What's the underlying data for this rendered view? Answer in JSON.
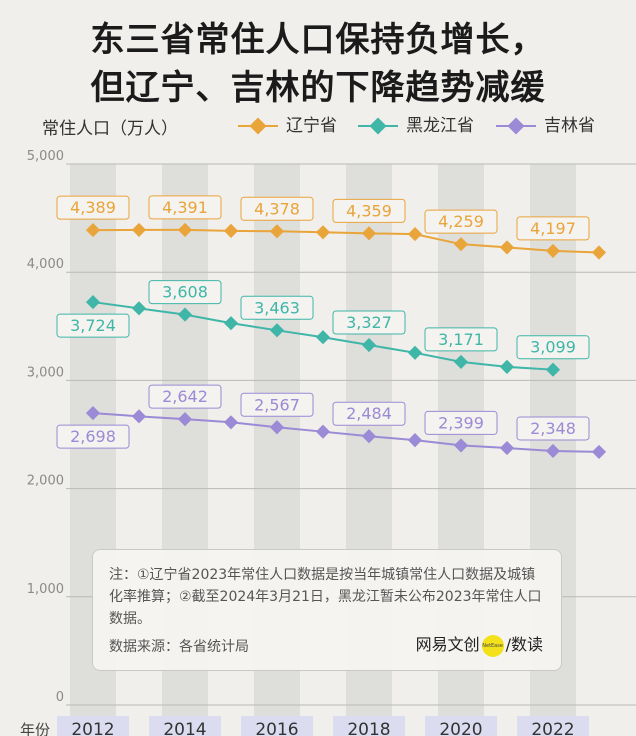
{
  "title_line1": "东三省常住人口保持负增长，",
  "title_line2": "但辽宁、吉林的下降趋势减缓",
  "colors": {
    "liaoning": "#e9a43a",
    "heilongjiang": "#3fb6a8",
    "jilin": "#9b8ad6",
    "band": "#dededb"
  },
  "note": {
    "text": "注：①辽宁省2023年常住人口数据是按当年城镇常住人口数据及城镇化率推算；②截至2024年3月21日，黑龙江暂未公布2023年常住人口数据。",
    "source": "数据来源：各省统计局",
    "brand_left": "网易文创",
    "brand_dot": "NetEase",
    "brand_right": "/数读"
  },
  "chart_data": {
    "type": "line",
    "ylabel": "常住人口（万人）",
    "xlabel": "年份",
    "x": [
      2012,
      2013,
      2014,
      2015,
      2016,
      2017,
      2018,
      2019,
      2020,
      2021,
      2022,
      2023
    ],
    "x_tick_labels": [
      "2012",
      "2014",
      "2016",
      "2018",
      "2020",
      "2022"
    ],
    "ylim": [
      0,
      5000
    ],
    "y_ticks": [
      0,
      1000,
      2000,
      3000,
      4000,
      5000
    ],
    "y_tick_labels": [
      "0",
      "1,000",
      "2,000",
      "3,000",
      "4,000",
      "5,000"
    ],
    "legend_position": "top",
    "series": [
      {
        "name": "辽宁省",
        "color_key": "liaoning",
        "values": [
          4389,
          4391,
          4391,
          4382,
          4378,
          4369,
          4359,
          4352,
          4259,
          4229,
          4197,
          4182
        ],
        "labels": [
          {
            "x": 2012,
            "text": "4,389"
          },
          {
            "x": 2014,
            "text": "4,391"
          },
          {
            "x": 2016,
            "text": "4,378"
          },
          {
            "x": 2018,
            "text": "4,359"
          },
          {
            "x": 2020,
            "text": "4,259"
          },
          {
            "x": 2022,
            "text": "4,197"
          }
        ]
      },
      {
        "name": "黑龙江省",
        "color_key": "heilongjiang",
        "values": [
          3724,
          3666,
          3608,
          3529,
          3463,
          3399,
          3327,
          3255,
          3171,
          3125,
          3099,
          null
        ],
        "labels": [
          {
            "x": 2012,
            "text": "3,724"
          },
          {
            "x": 2014,
            "text": "3,608"
          },
          {
            "x": 2016,
            "text": "3,463"
          },
          {
            "x": 2018,
            "text": "3,327"
          },
          {
            "x": 2020,
            "text": "3,171"
          },
          {
            "x": 2022,
            "text": "3,099"
          }
        ]
      },
      {
        "name": "吉林省",
        "color_key": "jilin",
        "values": [
          2698,
          2668,
          2642,
          2613,
          2567,
          2526,
          2484,
          2448,
          2399,
          2375,
          2348,
          2339
        ],
        "labels": [
          {
            "x": 2012,
            "text": "2,698"
          },
          {
            "x": 2014,
            "text": "2,642"
          },
          {
            "x": 2016,
            "text": "2,567"
          },
          {
            "x": 2018,
            "text": "2,484"
          },
          {
            "x": 2020,
            "text": "2,399"
          },
          {
            "x": 2022,
            "text": "2,348"
          }
        ]
      }
    ]
  }
}
